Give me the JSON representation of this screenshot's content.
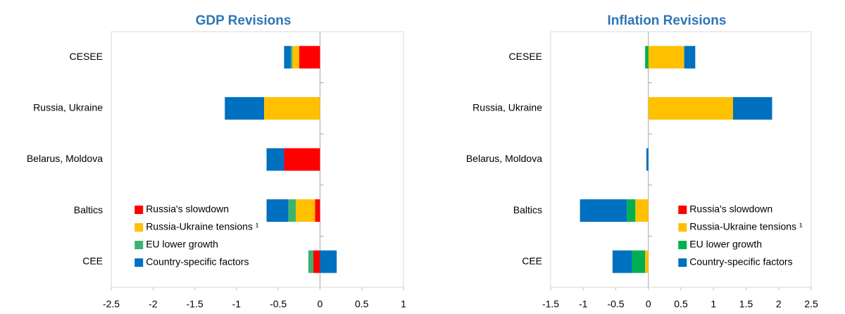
{
  "chart_data": [
    {
      "type": "bar",
      "orientation": "horizontal",
      "title": "GDP Revisions",
      "categories": [
        "CESEE",
        "Russia, Ukraine",
        "Belarus, Moldova",
        "Baltics",
        "CEE"
      ],
      "series": [
        {
          "name": "Russia's slowdown",
          "color": "#ff0000",
          "values": [
            -0.25,
            0,
            -0.43,
            -0.06,
            -0.08
          ]
        },
        {
          "name": "Russia-Ukraine tensions ¹",
          "color": "#ffc000",
          "values": [
            -0.08,
            -0.67,
            0,
            -0.23,
            0
          ]
        },
        {
          "name": "EU lower growth",
          "color": "#3cb371",
          "values": [
            -0.02,
            0,
            0,
            -0.09,
            -0.06
          ]
        },
        {
          "name": "Country-specific factors",
          "color": "#0070c0",
          "values": [
            -0.08,
            -0.47,
            -0.21,
            -0.26,
            0.2
          ]
        }
      ],
      "xlim": [
        -2.5,
        1
      ],
      "xticks": [
        -2.5,
        -2,
        -1.5,
        -1,
        -0.5,
        0,
        0.5,
        1
      ],
      "legend": "lower center"
    },
    {
      "type": "bar",
      "orientation": "horizontal",
      "title": "Inflation Revisions",
      "categories": [
        "CESEE",
        "Russia, Ukraine",
        "Belarus, Moldova",
        "Baltics",
        "CEE"
      ],
      "series": [
        {
          "name": "Russia's slowdown",
          "color": "#ff0000",
          "values": [
            0,
            0,
            0,
            0,
            0
          ]
        },
        {
          "name": "Russia-Ukraine tensions ¹",
          "color": "#ffc000",
          "values": [
            0.55,
            1.3,
            0,
            -0.2,
            -0.05
          ]
        },
        {
          "name": "EU lower growth",
          "color": "#00b050",
          "values": [
            -0.05,
            0,
            0,
            -0.13,
            -0.2
          ]
        },
        {
          "name": "Country-specific factors",
          "color": "#0070c0",
          "values": [
            0.17,
            0.6,
            -0.03,
            -0.72,
            -0.3
          ]
        }
      ],
      "xlim": [
        -1.5,
        2.5
      ],
      "xticks": [
        -1.5,
        -1,
        -0.5,
        0,
        0.5,
        1,
        1.5,
        2,
        2.5
      ],
      "legend": "lower center"
    }
  ]
}
